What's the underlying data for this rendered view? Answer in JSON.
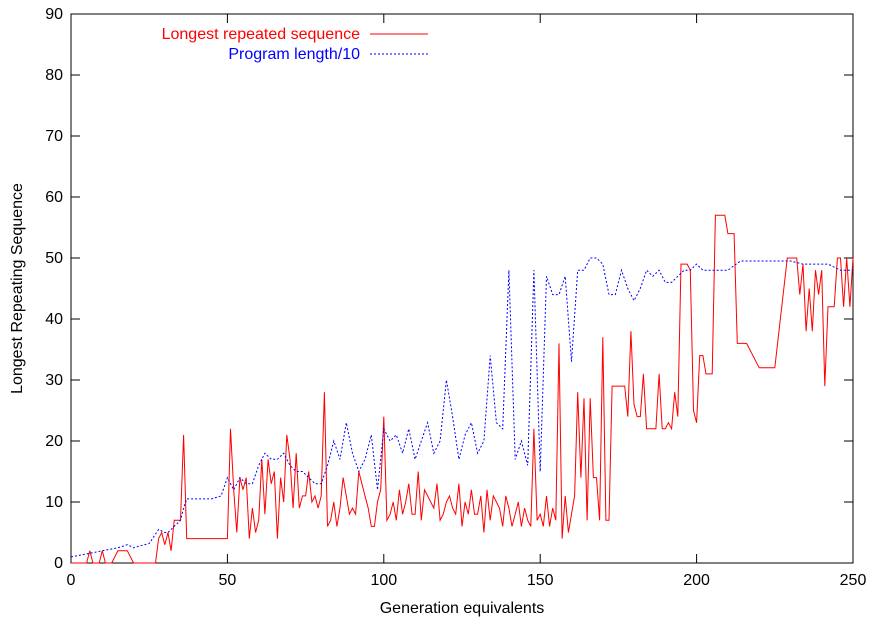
{
  "chart_data": {
    "type": "line",
    "title": "",
    "xlabel": "Generation equivalents",
    "ylabel": "Longest Repeating Sequence",
    "xlim": [
      0,
      250
    ],
    "ylim": [
      0,
      90
    ],
    "xticks": [
      0,
      50,
      100,
      150,
      200,
      250
    ],
    "yticks": [
      0,
      10,
      20,
      30,
      40,
      50,
      60,
      70,
      80,
      90
    ],
    "grid": false,
    "legend_position": "top-left",
    "series": [
      {
        "name": "Longest repeated sequence",
        "color": "#ff0000",
        "style": "solid",
        "x": [
          0,
          5,
          6,
          7,
          8,
          9,
          10,
          11,
          12,
          13,
          15,
          18,
          20,
          21,
          22,
          25,
          27,
          28,
          29,
          30,
          31,
          32,
          33,
          34,
          35,
          36,
          37,
          38,
          40,
          45,
          50,
          51,
          52,
          53,
          54,
          55,
          56,
          57,
          58,
          59,
          60,
          61,
          62,
          63,
          64,
          65,
          66,
          67,
          68,
          69,
          70,
          71,
          72,
          73,
          74,
          75,
          76,
          77,
          78,
          79,
          80,
          81,
          82,
          83,
          84,
          85,
          86,
          87,
          88,
          89,
          90,
          91,
          92,
          93,
          94,
          95,
          96,
          97,
          98,
          99,
          100,
          101,
          102,
          103,
          104,
          105,
          106,
          107,
          108,
          109,
          110,
          111,
          112,
          113,
          114,
          115,
          116,
          117,
          118,
          119,
          120,
          121,
          122,
          123,
          124,
          125,
          126,
          127,
          128,
          129,
          130,
          131,
          132,
          133,
          134,
          135,
          136,
          137,
          138,
          139,
          140,
          141,
          142,
          143,
          144,
          145,
          146,
          147,
          148,
          149,
          150,
          151,
          152,
          153,
          154,
          155,
          156,
          157,
          158,
          159,
          160,
          161,
          162,
          163,
          164,
          165,
          166,
          167,
          168,
          169,
          170,
          171,
          172,
          173,
          174,
          175,
          176,
          177,
          178,
          179,
          180,
          181,
          182,
          183,
          184,
          185,
          186,
          187,
          188,
          189,
          190,
          191,
          192,
          193,
          194,
          195,
          196,
          197,
          198,
          199,
          200,
          201,
          202,
          203,
          204,
          205,
          206,
          207,
          208,
          209,
          210,
          211,
          212,
          213,
          214,
          215,
          216,
          220,
          225,
          229,
          230,
          231,
          232,
          233,
          234,
          235,
          236,
          237,
          238,
          239,
          240,
          241,
          242,
          243,
          244,
          245,
          246,
          247,
          248,
          249,
          250
        ],
        "y": [
          0,
          0,
          2,
          0,
          0,
          0,
          2,
          0,
          0,
          0,
          2,
          2,
          0,
          0,
          0,
          0,
          0,
          4,
          5,
          3,
          5,
          2,
          7,
          7,
          7,
          21,
          4,
          4,
          4,
          4,
          4,
          22,
          12,
          5,
          14,
          12,
          14,
          4,
          9,
          5,
          7,
          17,
          8,
          17,
          13,
          15,
          4,
          14,
          10,
          21,
          17,
          9,
          18,
          9,
          11,
          11,
          15,
          10,
          11,
          9,
          11,
          28,
          6,
          7,
          10,
          6,
          9,
          14,
          11,
          8,
          9,
          8,
          15,
          13,
          11,
          9,
          6,
          6,
          10,
          12,
          24,
          7,
          8,
          10,
          7,
          12,
          8,
          10,
          13,
          8,
          8,
          15,
          7,
          12,
          11,
          10,
          9,
          13,
          7,
          8,
          10,
          11,
          9,
          8,
          13,
          6,
          10,
          8,
          12,
          8,
          8,
          11,
          5,
          12,
          7,
          11,
          10,
          9,
          6,
          11,
          9,
          6,
          8,
          10,
          6,
          9,
          7,
          6,
          22,
          7,
          8,
          6,
          11,
          6,
          9,
          7,
          36,
          4,
          11,
          5,
          8,
          11,
          28,
          14,
          27,
          7,
          27,
          14,
          14,
          7,
          37,
          7,
          7,
          29,
          29,
          29,
          29,
          29,
          24,
          38,
          26,
          24,
          24,
          31,
          22,
          22,
          22,
          22,
          31,
          22,
          22,
          23,
          22,
          28,
          24,
          49,
          49,
          49,
          48,
          25,
          23,
          34,
          34,
          31,
          31,
          31,
          57,
          57,
          57,
          57,
          54,
          54,
          54,
          36,
          36,
          36,
          36,
          32,
          32,
          50,
          50,
          50,
          50,
          44,
          49,
          38,
          45,
          38,
          48,
          44,
          48,
          29,
          42,
          42,
          42,
          50,
          50,
          42,
          50,
          42,
          50
        ],
        "visible_xlim": [
          0,
          250
        ]
      },
      {
        "name": "Program length/10",
        "color": "#0000ff",
        "style": "dotted",
        "x": [
          0,
          5,
          10,
          15,
          18,
          20,
          22,
          25,
          28,
          30,
          31,
          32,
          33,
          34,
          35,
          36,
          37,
          38,
          40,
          45,
          48,
          50,
          52,
          54,
          56,
          58,
          60,
          62,
          64,
          66,
          68,
          70,
          72,
          74,
          76,
          78,
          80,
          82,
          84,
          86,
          88,
          90,
          92,
          94,
          96,
          98,
          100,
          102,
          104,
          106,
          108,
          110,
          112,
          114,
          116,
          118,
          120,
          122,
          124,
          126,
          128,
          130,
          132,
          134,
          136,
          138,
          140,
          142,
          144,
          146,
          148,
          150,
          152,
          154,
          156,
          158,
          160,
          162,
          164,
          166,
          168,
          170,
          172,
          174,
          176,
          178,
          180,
          182,
          184,
          186,
          188,
          190,
          192,
          194,
          196,
          198,
          200,
          202,
          204,
          206,
          208,
          210,
          214,
          218,
          222,
          226,
          230,
          234,
          238,
          242,
          246,
          250
        ],
        "y": [
          1,
          1.5,
          2,
          2.5,
          3,
          2.5,
          2.8,
          3.2,
          5.5,
          5,
          5,
          5.5,
          6,
          6.5,
          7,
          9,
          10.5,
          10.5,
          10.5,
          10.5,
          11,
          14,
          12,
          14,
          13,
          13,
          16,
          18,
          17,
          17,
          18,
          16,
          15,
          15,
          14,
          13,
          13,
          16,
          20,
          17,
          23,
          18,
          15,
          17,
          21,
          12,
          22,
          20,
          21,
          18,
          22,
          17,
          20,
          23,
          18,
          20,
          30,
          24,
          17,
          21,
          23,
          18,
          20,
          34,
          23,
          22,
          48,
          17,
          20,
          16,
          48,
          15,
          47,
          44,
          44,
          47,
          33,
          48,
          48,
          50,
          50,
          49,
          44,
          44,
          48,
          45,
          43,
          45,
          48,
          47,
          48,
          46,
          46,
          47,
          48,
          48,
          49,
          48,
          48,
          48,
          48,
          48,
          49.5,
          49.5,
          49.5,
          49.5,
          49.5,
          49,
          49,
          49,
          48,
          48
        ]
      }
    ]
  }
}
